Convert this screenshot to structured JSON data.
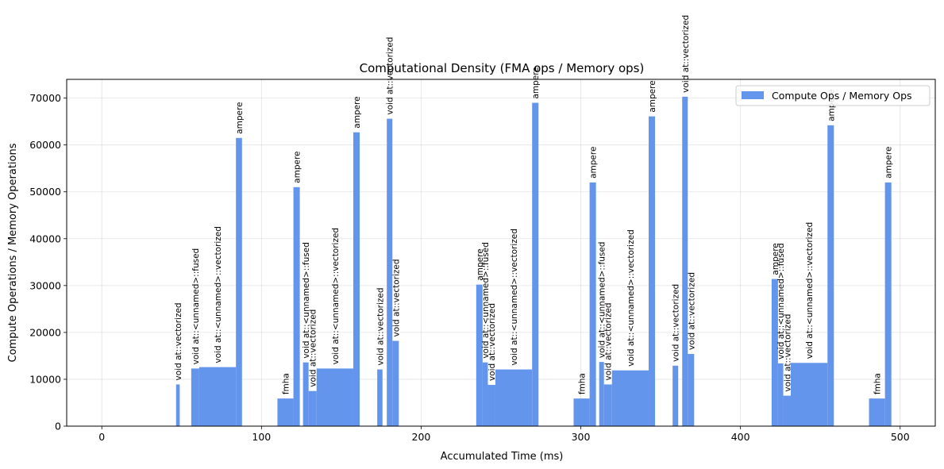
{
  "chart_data": {
    "type": "bar",
    "title": "Computational Density (FMA ops / Memory ops)",
    "xlabel": "Accumulated Time (ms)",
    "ylabel": "Compute Operations / Memory Operations",
    "xlim": [
      -22,
      522
    ],
    "ylim": [
      0,
      74000
    ],
    "xticks": [
      0,
      100,
      200,
      300,
      400,
      500
    ],
    "yticks": [
      0,
      10000,
      20000,
      30000,
      40000,
      50000,
      60000,
      70000
    ],
    "grid": true,
    "legend": {
      "position": "top-right",
      "entries": [
        "Compute Ops / Memory Ops"
      ]
    },
    "colors": {
      "bar": "#6495ed"
    },
    "series": [
      {
        "name": "Compute Ops / Memory Ops",
        "bars": [
          {
            "x0": 46.5,
            "x1": 48.8,
            "value": 8900,
            "label": "void at::vectorized"
          },
          {
            "x0": 56.0,
            "x1": 61.0,
            "value": 12300,
            "label": "void at::<unnamed>::fused"
          },
          {
            "x0": 61.0,
            "x1": 84.0,
            "value": 12600,
            "label": "void at::<unnamed>::vectorized"
          },
          {
            "x0": 84.0,
            "x1": 87.8,
            "value": 61500,
            "label": "ampere"
          },
          {
            "x0": 110.0,
            "x1": 120.0,
            "value": 5900,
            "label": "fmha"
          },
          {
            "x0": 120.0,
            "x1": 124.0,
            "value": 51000,
            "label": "ampere"
          },
          {
            "x0": 126.0,
            "x1": 129.5,
            "value": 13600,
            "label": "void at::<unnamed>::fused"
          },
          {
            "x0": 129.5,
            "x1": 134.5,
            "value": 7500,
            "label": "void at::vectorized"
          },
          {
            "x0": 134.5,
            "x1": 157.5,
            "value": 12300,
            "label": "void at::<unnamed>::vectorized"
          },
          {
            "x0": 157.5,
            "x1": 161.5,
            "value": 62700,
            "label": "ampere"
          },
          {
            "x0": 172.5,
            "x1": 175.8,
            "value": 12100,
            "label": "void at::vectorized"
          },
          {
            "x0": 178.5,
            "x1": 182.0,
            "value": 65600,
            "label": "void at::vectorized"
          },
          {
            "x0": 182.0,
            "x1": 186.0,
            "value": 18200,
            "label": "void at::vectorized"
          },
          {
            "x0": 234.5,
            "x1": 238.5,
            "value": 30200,
            "label": "ampere"
          },
          {
            "x0": 238.5,
            "x1": 241.8,
            "value": 13600,
            "label": "void at::<unnamed>::fused"
          },
          {
            "x0": 241.8,
            "x1": 246.5,
            "value": 8800,
            "label": "void at::vectorized"
          },
          {
            "x0": 246.5,
            "x1": 269.5,
            "value": 12100,
            "label": "void at::<unnamed>::vectorized"
          },
          {
            "x0": 269.5,
            "x1": 273.5,
            "value": 69000,
            "label": "ampere"
          },
          {
            "x0": 295.5,
            "x1": 305.5,
            "value": 5900,
            "label": "fmha"
          },
          {
            "x0": 305.5,
            "x1": 309.5,
            "value": 52000,
            "label": "ampere"
          },
          {
            "x0": 311.5,
            "x1": 314.5,
            "value": 13700,
            "label": "void at::<unnamed>::fused"
          },
          {
            "x0": 314.5,
            "x1": 319.5,
            "value": 8900,
            "label": "void at::vectorized"
          },
          {
            "x0": 319.5,
            "x1": 342.5,
            "value": 11900,
            "label": "void at::<unnamed>::vectorized"
          },
          {
            "x0": 342.5,
            "x1": 346.5,
            "value": 66100,
            "label": "ampere"
          },
          {
            "x0": 357.5,
            "x1": 361.0,
            "value": 12900,
            "label": "void at::vectorized"
          },
          {
            "x0": 363.5,
            "x1": 367.0,
            "value": 70300,
            "label": "void at::vectorized"
          },
          {
            "x0": 367.0,
            "x1": 371.0,
            "value": 15400,
            "label": "void at::vectorized"
          },
          {
            "x0": 419.5,
            "x1": 423.5,
            "value": 31400,
            "label": "ampere"
          },
          {
            "x0": 423.5,
            "x1": 426.8,
            "value": 13400,
            "label": "void at::<unnamed>::fused"
          },
          {
            "x0": 426.8,
            "x1": 431.5,
            "value": 6500,
            "label": "void at::vectorized"
          },
          {
            "x0": 431.5,
            "x1": 454.5,
            "value": 13500,
            "label": "void at::<unnamed>::vectorized"
          },
          {
            "x0": 454.5,
            "x1": 458.5,
            "value": 64200,
            "label": "ampere"
          },
          {
            "x0": 480.5,
            "x1": 490.5,
            "value": 5900,
            "label": "fmha"
          },
          {
            "x0": 490.5,
            "x1": 494.5,
            "value": 52000,
            "label": "ampere"
          }
        ]
      }
    ]
  }
}
